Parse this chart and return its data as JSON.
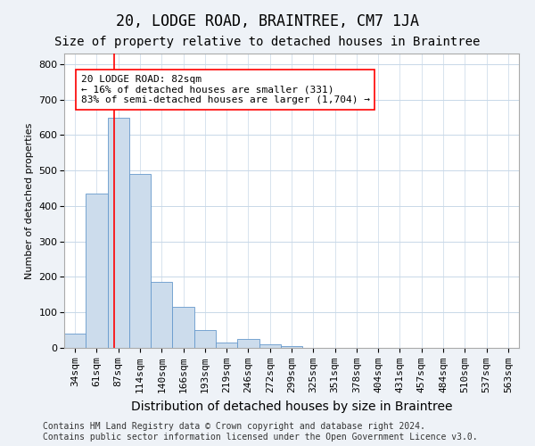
{
  "title": "20, LODGE ROAD, BRAINTREE, CM7 1JA",
  "subtitle": "Size of property relative to detached houses in Braintree",
  "xlabel": "Distribution of detached houses by size in Braintree",
  "ylabel": "Number of detached properties",
  "bar_labels": [
    "34sqm",
    "61sqm",
    "87sqm",
    "114sqm",
    "140sqm",
    "166sqm",
    "193sqm",
    "219sqm",
    "246sqm",
    "272sqm",
    "299sqm",
    "325sqm",
    "351sqm",
    "378sqm",
    "404sqm",
    "431sqm",
    "457sqm",
    "484sqm",
    "510sqm",
    "537sqm",
    "563sqm"
  ],
  "bar_values": [
    40,
    435,
    650,
    490,
    185,
    115,
    50,
    15,
    25,
    10,
    5,
    0,
    0,
    0,
    0,
    0,
    0,
    0,
    0,
    0,
    0
  ],
  "bar_color": "#ccdcec",
  "bar_edgecolor": "#6699cc",
  "property_line_x": 1.5,
  "annotation_label": "20 LODGE ROAD: 82sqm",
  "annotation_line1": "← 16% of detached houses are smaller (331)",
  "annotation_line2": "83% of semi-detached houses are larger (1,704) →",
  "ylim": [
    0,
    830
  ],
  "yticks": [
    0,
    100,
    200,
    300,
    400,
    500,
    600,
    700,
    800
  ],
  "footer_line1": "Contains HM Land Registry data © Crown copyright and database right 2024.",
  "footer_line2": "Contains public sector information licensed under the Open Government Licence v3.0.",
  "background_color": "#eef2f7",
  "plot_background_color": "#ffffff",
  "grid_color": "#c8d8e8",
  "title_fontsize": 12,
  "subtitle_fontsize": 10,
  "xlabel_fontsize": 10,
  "ylabel_fontsize": 8,
  "tick_fontsize": 8,
  "annotation_fontsize": 8,
  "footer_fontsize": 7
}
